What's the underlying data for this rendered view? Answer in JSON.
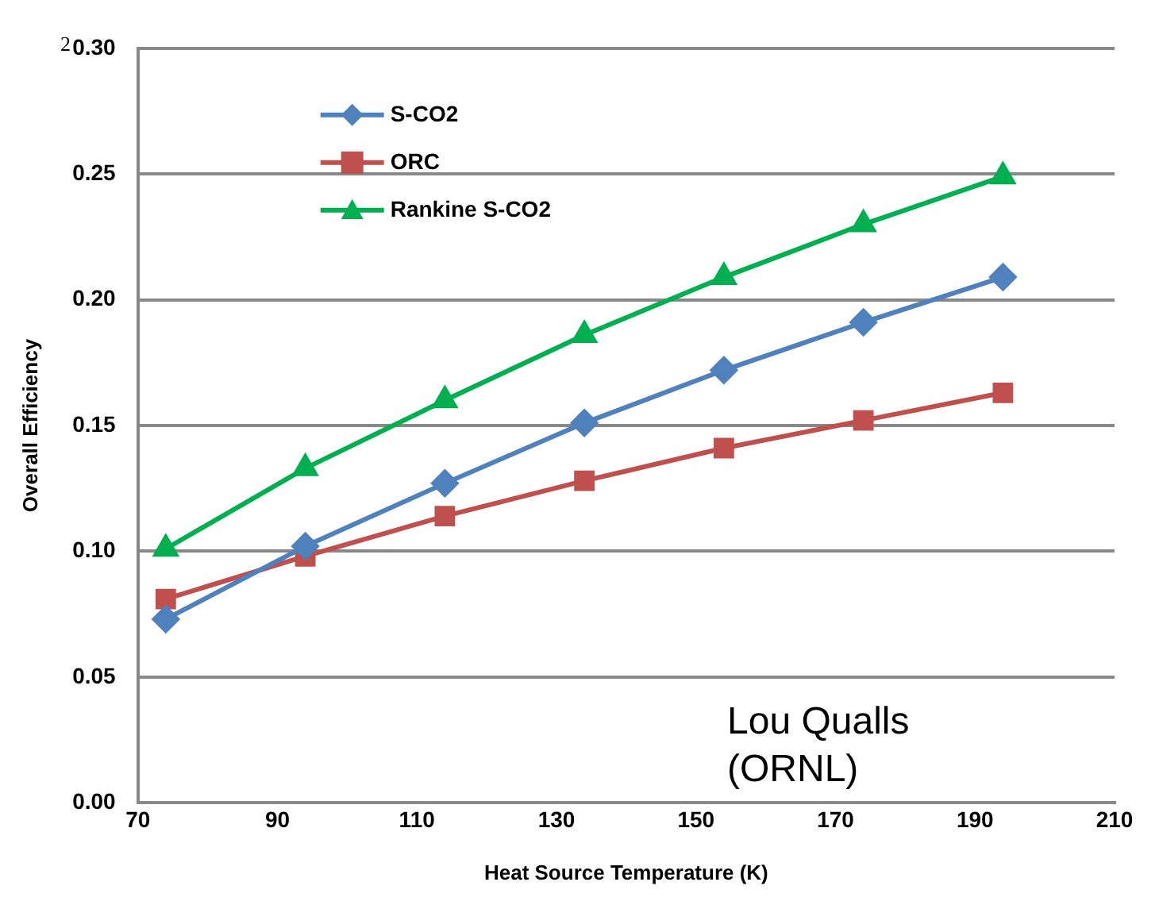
{
  "chart_data": {
    "type": "line",
    "xlabel": "Heat Source Temperature (K)",
    "ylabel": "Overall Efficiency",
    "x": [
      74,
      94,
      114,
      134,
      154,
      174,
      194
    ],
    "series": [
      {
        "name": "S-CO2",
        "color": "#4f81bd",
        "marker": "diamond",
        "values": [
          0.073,
          0.102,
          0.127,
          0.151,
          0.172,
          0.191,
          0.209
        ]
      },
      {
        "name": "ORC",
        "color": "#c0504d",
        "marker": "square",
        "values": [
          0.081,
          0.098,
          0.114,
          0.128,
          0.141,
          0.152,
          0.163
        ]
      },
      {
        "name": "Rankine S-CO2",
        "color": "#00b050",
        "marker": "triangle",
        "values": [
          0.101,
          0.133,
          0.16,
          0.186,
          0.209,
          0.23,
          0.249
        ]
      }
    ],
    "xlim": [
      70,
      210
    ],
    "xticks": [
      70,
      90,
      110,
      130,
      150,
      170,
      190,
      210
    ],
    "ylim": [
      0,
      0.3
    ],
    "yticks": [
      {
        "value": 0,
        "label": "0.00"
      },
      {
        "value": 0.05,
        "label": "0.05"
      },
      {
        "value": 0.1,
        "label": "0.10"
      },
      {
        "value": 0.15,
        "label": "0.15"
      },
      {
        "value": 0.2,
        "label": "0.20"
      },
      {
        "value": 0.25,
        "label": "0.25"
      },
      {
        "value": 0.3,
        "label": "0.30"
      }
    ],
    "grid": "y",
    "legend": "top left",
    "annotations": [
      "2",
      "Lou Qualls (ORNL)"
    ]
  }
}
